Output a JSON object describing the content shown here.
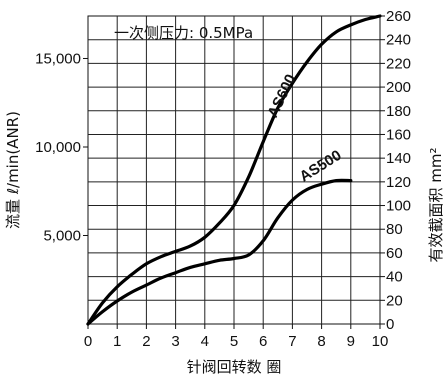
{
  "chart_data": {
    "type": "line",
    "annotation": "一次侧压力: 0.5MPa",
    "xlabel": "针阀回转数 圈",
    "ylabel_left": "流量 ℓ/min(ANR)",
    "ylabel_right": "有效截面积 mm²",
    "xlim": [
      0,
      10
    ],
    "ylim_left": [
      0,
      17400
    ],
    "ylim_right": [
      0,
      260
    ],
    "x_ticks": [
      "0",
      "1",
      "2",
      "3",
      "4",
      "5",
      "6",
      "7",
      "8",
      "9",
      "10"
    ],
    "y_left_ticks": [
      "5,000",
      "10,000",
      "15,000"
    ],
    "y_left_tick_values": [
      5000,
      10000,
      15000
    ],
    "y_right_ticks": [
      "0",
      "20",
      "40",
      "60",
      "80",
      "100",
      "120",
      "140",
      "160",
      "180",
      "200",
      "220",
      "240",
      "260"
    ],
    "y_right_tick_values": [
      0,
      20,
      40,
      60,
      80,
      100,
      120,
      140,
      160,
      180,
      200,
      220,
      240,
      260
    ],
    "series": [
      {
        "name": "AS600",
        "x": [
          0,
          0.5,
          1,
          1.5,
          2,
          2.5,
          3,
          3.5,
          4,
          4.5,
          5,
          5.5,
          6,
          6.5,
          7,
          7.5,
          8,
          8.5,
          9,
          9.5,
          10
        ],
        "y": [
          0,
          1200,
          2100,
          2800,
          3400,
          3800,
          4100,
          4400,
          4900,
          5700,
          6700,
          8300,
          10300,
          12200,
          13600,
          14800,
          15800,
          16500,
          16900,
          17200,
          17400
        ]
      },
      {
        "name": "AS500",
        "x": [
          0,
          0.5,
          1,
          1.5,
          2,
          2.5,
          3,
          3.5,
          4,
          4.5,
          5,
          5.5,
          6,
          6.5,
          7,
          7.5,
          8,
          8.5,
          9
        ],
        "y": [
          0,
          700,
          1300,
          1800,
          2200,
          2600,
          2900,
          3200,
          3400,
          3600,
          3700,
          3900,
          4700,
          6000,
          7000,
          7600,
          7900,
          8100,
          8100
        ]
      }
    ],
    "grid": true
  }
}
